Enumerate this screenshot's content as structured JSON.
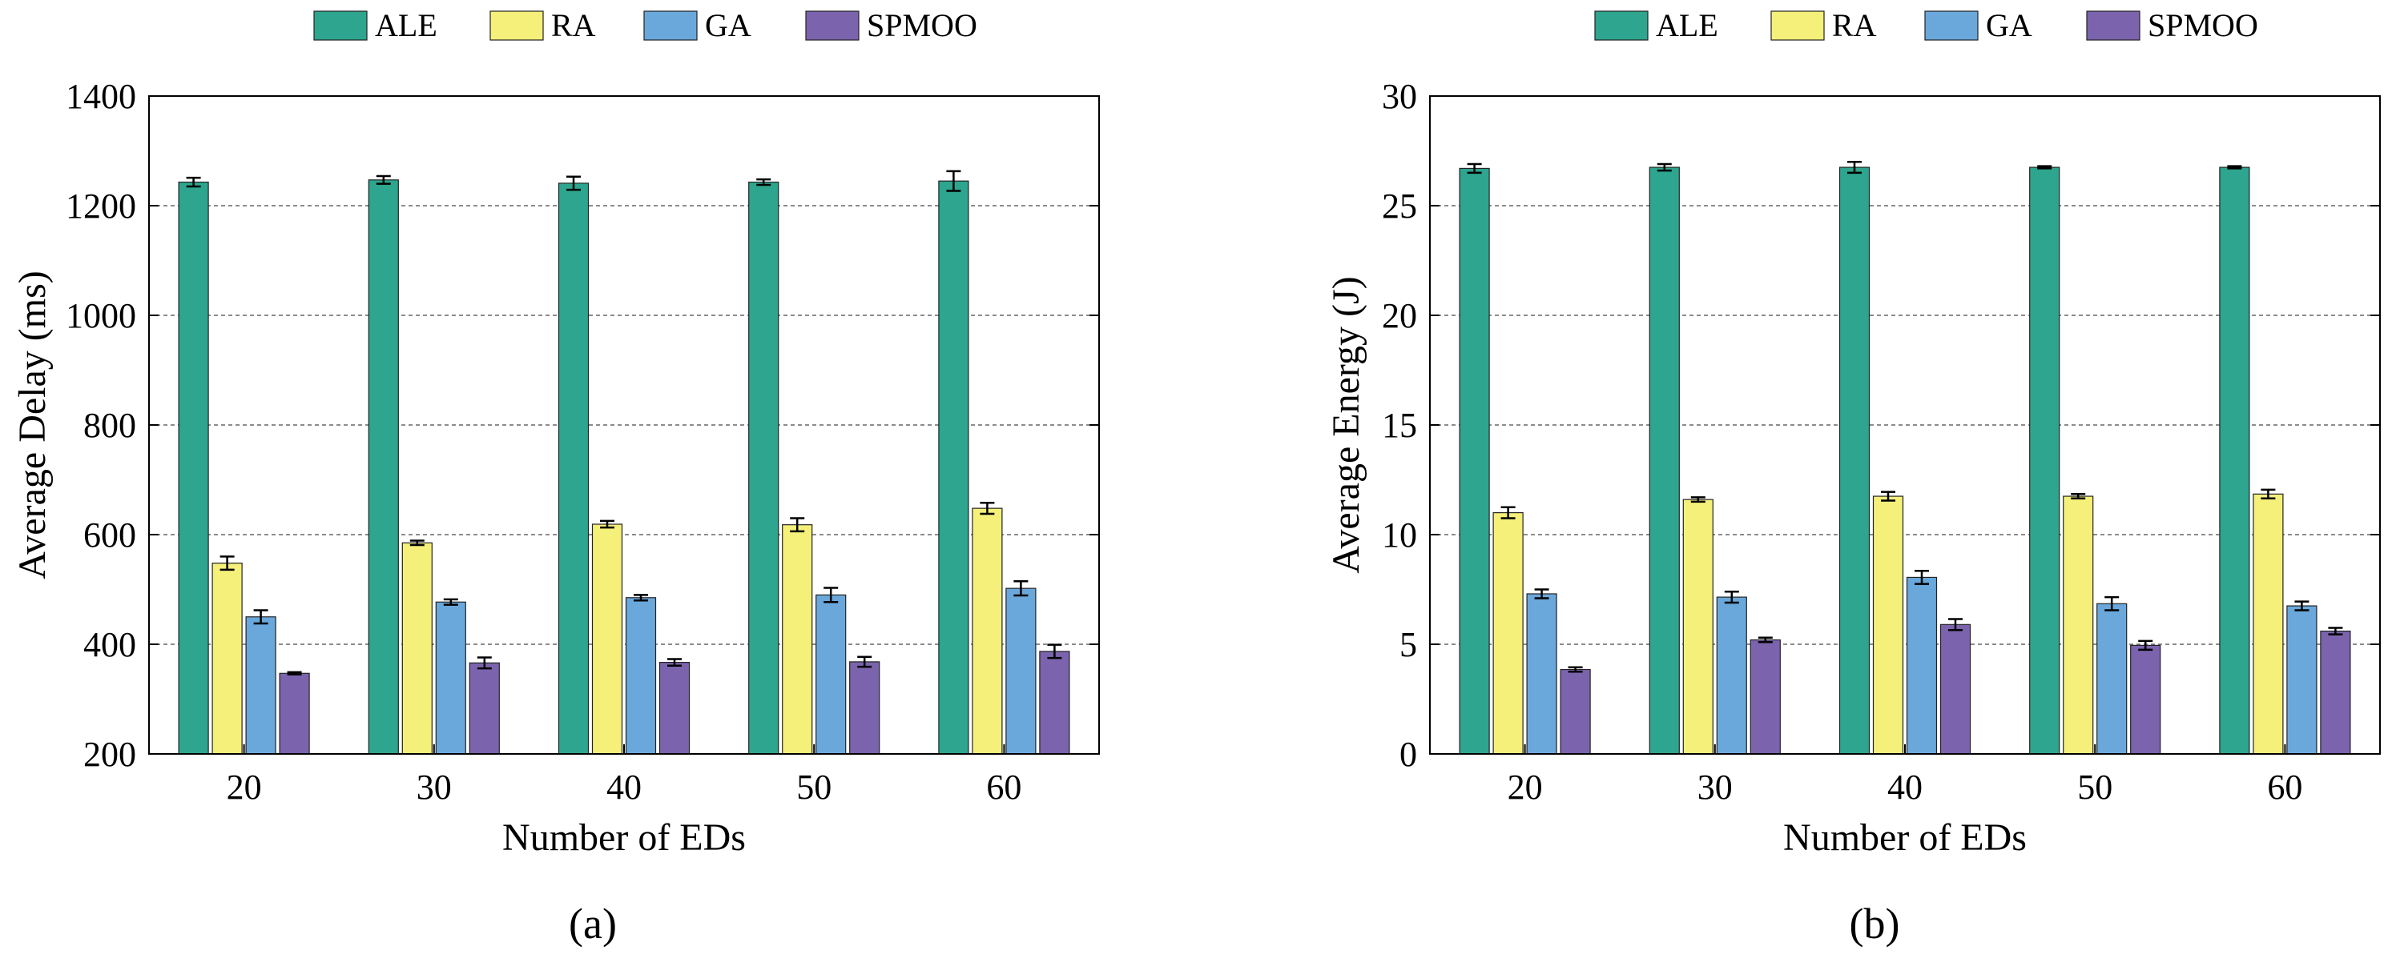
{
  "colors": {
    "ALE": "#2ea58e",
    "RA": "#f4f07a",
    "GA": "#6aa8db",
    "SPMOO": "#7b64ad"
  },
  "chart_data": [
    {
      "type": "bar",
      "label": "(a)",
      "legend": [
        "ALE",
        "RA",
        "GA",
        "SPMOO"
      ],
      "legend_position": "top-center",
      "xlabel": "Number of EDs",
      "ylabel": "Average Delay (ms)",
      "categories": [
        "20",
        "30",
        "40",
        "50",
        "60"
      ],
      "ylim": [
        200,
        1400
      ],
      "yticks": [
        200,
        400,
        600,
        800,
        1000,
        1200,
        1400
      ],
      "grid": "horizontal dashed",
      "series": [
        {
          "name": "ALE",
          "values": [
            1243,
            1247,
            1241,
            1243,
            1245
          ],
          "errors": [
            8,
            7,
            12,
            5,
            18
          ]
        },
        {
          "name": "RA",
          "values": [
            548,
            585,
            619,
            618,
            648
          ],
          "errors": [
            12,
            4,
            6,
            12,
            10
          ]
        },
        {
          "name": "GA",
          "values": [
            450,
            477,
            485,
            490,
            502
          ],
          "errors": [
            12,
            5,
            5,
            13,
            13
          ]
        },
        {
          "name": "SPMOO",
          "values": [
            347,
            366,
            367,
            368,
            387
          ],
          "errors": [
            2,
            10,
            6,
            9,
            12
          ]
        }
      ]
    },
    {
      "type": "bar",
      "label": "(b)",
      "legend": [
        "ALE",
        "RA",
        "GA",
        "SPMOO"
      ],
      "legend_position": "top-center",
      "xlabel": "Number of EDs",
      "ylabel": "Average Energy (J)",
      "categories": [
        "20",
        "30",
        "40",
        "50",
        "60"
      ],
      "ylim": [
        0,
        30
      ],
      "yticks": [
        0,
        5,
        10,
        15,
        20,
        25,
        30
      ],
      "grid": "horizontal dashed",
      "series": [
        {
          "name": "ALE",
          "values": [
            26.7,
            26.75,
            26.75,
            26.75,
            26.75
          ],
          "errors": [
            0.2,
            0.15,
            0.25,
            0.05,
            0.05
          ]
        },
        {
          "name": "RA",
          "values": [
            11.0,
            11.6,
            11.75,
            11.75,
            11.85
          ],
          "errors": [
            0.25,
            0.1,
            0.2,
            0.1,
            0.2
          ]
        },
        {
          "name": "GA",
          "values": [
            7.3,
            7.15,
            8.05,
            6.85,
            6.75
          ],
          "errors": [
            0.2,
            0.25,
            0.3,
            0.3,
            0.2
          ]
        },
        {
          "name": "SPMOO",
          "values": [
            3.85,
            5.2,
            5.9,
            4.95,
            5.6
          ],
          "errors": [
            0.1,
            0.1,
            0.25,
            0.2,
            0.15
          ]
        }
      ]
    }
  ]
}
